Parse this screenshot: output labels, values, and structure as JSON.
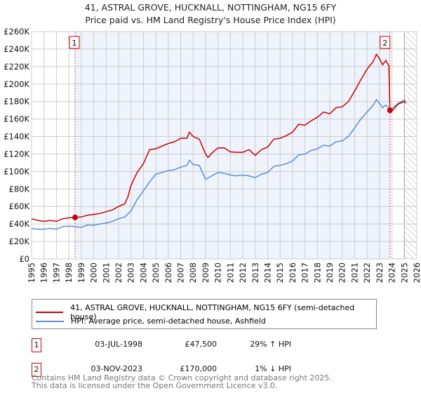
{
  "chart_data": {
    "type": "line",
    "title": "41, ASTRAL GROVE, HUCKNALL, NOTTINGHAM, NG15 6FY",
    "subtitle": "Price paid vs. HM Land Registry's House Price Index (HPI)",
    "ylim": [
      0,
      260000
    ],
    "xlim": [
      1995,
      2026
    ],
    "yticks": [
      {
        "v": 0,
        "l": "£0"
      },
      {
        "v": 20000,
        "l": "£20K"
      },
      {
        "v": 40000,
        "l": "£40K"
      },
      {
        "v": 60000,
        "l": "£60K"
      },
      {
        "v": 80000,
        "l": "£80K"
      },
      {
        "v": 100000,
        "l": "£100K"
      },
      {
        "v": 120000,
        "l": "£120K"
      },
      {
        "v": 140000,
        "l": "£140K"
      },
      {
        "v": 160000,
        "l": "£160K"
      },
      {
        "v": 180000,
        "l": "£180K"
      },
      {
        "v": 200000,
        "l": "£200K"
      },
      {
        "v": 220000,
        "l": "£220K"
      },
      {
        "v": 240000,
        "l": "£240K"
      },
      {
        "v": 260000,
        "l": "£260K"
      }
    ],
    "xticks": [
      "1995",
      "1996",
      "1997",
      "1998",
      "1999",
      "2000",
      "2001",
      "2002",
      "2003",
      "2004",
      "2005",
      "2006",
      "2007",
      "2008",
      "2009",
      "2010",
      "2011",
      "2012",
      "2013",
      "2014",
      "2015",
      "2016",
      "2017",
      "2018",
      "2019",
      "2020",
      "2021",
      "2022",
      "2023",
      "2024",
      "2025",
      "2026"
    ],
    "grid": true,
    "forecast_start": 2025.0,
    "shaded_range": [
      1998.5,
      2023.84
    ],
    "colors": {
      "property": "#cc0000",
      "hpi": "#5b8fd4",
      "shade": "#eef3fc",
      "marker_border": "#cc0000"
    },
    "series": [
      {
        "name": "41, ASTRAL GROVE, HUCKNALL, NOTTINGHAM, NG15 6FY (semi-detached house)",
        "color": "#cc0000",
        "x": [
          1995,
          1995.5,
          1996,
          1996.5,
          1997,
          1997.5,
          1998,
          1998.5,
          1999,
          1999.5,
          2000,
          2000.5,
          2001,
          2001.5,
          2002,
          2002.5,
          2002.75,
          2003,
          2003.5,
          2004,
          2004.5,
          2005,
          2005.5,
          2006,
          2006.5,
          2007,
          2007.5,
          2007.7,
          2008,
          2008.5,
          2009,
          2009.2,
          2009.5,
          2010,
          2010.5,
          2011,
          2011.5,
          2012,
          2012.5,
          2013,
          2013.5,
          2014,
          2014.5,
          2015,
          2015.5,
          2016,
          2016.5,
          2017,
          2017.5,
          2018,
          2018.5,
          2019,
          2019.5,
          2020,
          2020.5,
          2021,
          2021.5,
          2022,
          2022.5,
          2022.75,
          2023,
          2023.25,
          2023.5,
          2023.75,
          2023.84,
          2024,
          2024.5,
          2025,
          2025.1
        ],
        "values": [
          46000,
          44000,
          43000,
          44000,
          43000,
          46000,
          47000,
          47500,
          48000,
          50000,
          51000,
          52000,
          54000,
          56000,
          60000,
          63000,
          71000,
          84000,
          99000,
          109000,
          125000,
          126000,
          129000,
          132000,
          134000,
          138000,
          138000,
          145000,
          140000,
          137000,
          120000,
          116000,
          121000,
          127000,
          127000,
          122500,
          122000,
          122000,
          125000,
          118500,
          125000,
          128000,
          137000,
          138000,
          141000,
          145000,
          154000,
          153000,
          158000,
          162000,
          168000,
          166000,
          173000,
          174000,
          180000,
          192000,
          205000,
          217000,
          226000,
          234000,
          229000,
          222000,
          227000,
          221000,
          170000,
          169000,
          177000,
          180000,
          178000
        ]
      },
      {
        "name": "HPI: Average price, semi-detached house, Ashfield",
        "color": "#5b8fd4",
        "x": [
          1995,
          1995.5,
          1996,
          1996.5,
          1997,
          1997.5,
          1998,
          1998.5,
          1999,
          1999.5,
          2000,
          2000.5,
          2001,
          2001.5,
          2002,
          2002.5,
          2003,
          2003.5,
          2004,
          2004.5,
          2005,
          2005.5,
          2006,
          2006.5,
          2007,
          2007.5,
          2007.7,
          2008,
          2008.5,
          2009,
          2009.5,
          2010,
          2010.5,
          2011,
          2011.5,
          2012,
          2012.5,
          2013,
          2013.5,
          2014,
          2014.5,
          2015,
          2015.5,
          2016,
          2016.5,
          2017,
          2017.5,
          2018,
          2018.5,
          2019,
          2019.5,
          2020,
          2020.5,
          2021,
          2021.5,
          2022,
          2022.5,
          2022.75,
          2023,
          2023.25,
          2023.5,
          2023.84,
          2024,
          2024.5,
          2025,
          2025.1
        ],
        "values": [
          35000,
          34000,
          34000,
          35000,
          34000,
          37000,
          37500,
          37000,
          36000,
          39000,
          38500,
          40000,
          41000,
          43000,
          46000,
          48000,
          55000,
          68000,
          78000,
          88000,
          97000,
          99000,
          101000,
          102000,
          105000,
          107000,
          113000,
          108000,
          107000,
          91000,
          95000,
          99000,
          98000,
          96000,
          95000,
          96000,
          95000,
          93000,
          97000,
          99000,
          106000,
          107000,
          109000,
          112000,
          119000,
          120000,
          124000,
          126000,
          130000,
          129000,
          134000,
          135000,
          140000,
          150000,
          160000,
          168000,
          176000,
          182000,
          178000,
          173000,
          176000,
          172000,
          172000,
          178000,
          182000,
          180000
        ]
      }
    ],
    "sales": [
      {
        "label": "1",
        "x": 1998.5,
        "value": 47500
      },
      {
        "label": "2",
        "x": 2023.84,
        "value": 170000
      }
    ]
  },
  "legend": {
    "property": "41, ASTRAL GROVE, HUCKNALL, NOTTINGHAM, NG15 6FY (semi-detached house)",
    "hpi": "HPI: Average price, semi-detached house, Ashfield"
  },
  "transactions": [
    {
      "num": "1",
      "date": "03-JUL-1998",
      "price": "£47,500",
      "hpi": "29% ↑ HPI"
    },
    {
      "num": "2",
      "date": "03-NOV-2023",
      "price": "£170,000",
      "hpi": "1% ↓ HPI"
    }
  ],
  "footer": {
    "line1": "Contains HM Land Registry data © Crown copyright and database right 2025.",
    "line2": "This data is licensed under the Open Government Licence v3.0."
  }
}
